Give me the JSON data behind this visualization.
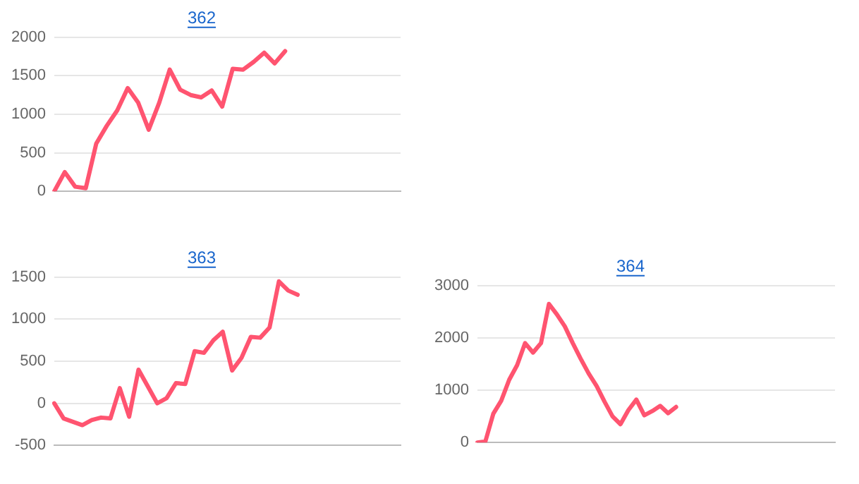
{
  "chart_data": [
    {
      "type": "line",
      "title": "362",
      "categories": [
        null,
        null,
        null,
        null,
        null,
        null,
        null,
        null,
        null,
        null,
        null,
        null,
        null,
        null,
        null,
        null,
        null,
        null,
        null,
        null,
        null,
        null,
        null,
        null,
        null,
        null,
        null,
        null,
        null,
        null,
        null,
        null,
        null,
        null
      ],
      "series": [
        {
          "color": "#ff5470",
          "values": [
            0,
            250,
            60,
            40,
            620,
            850,
            1050,
            1340,
            1150,
            800,
            1150,
            1580,
            1320,
            1250,
            1220,
            1310,
            1100,
            1590,
            1580,
            1680,
            1800,
            1660,
            1820,
            null,
            null,
            null,
            null,
            null,
            null,
            null,
            null,
            null,
            null,
            null
          ]
        }
      ],
      "ylim": [
        0,
        2000
      ],
      "yticks": [
        0,
        500,
        1000,
        1500,
        2000
      ],
      "grid": "y",
      "legend": false,
      "marker": "none"
    },
    {
      "type": "line",
      "title": "363",
      "categories": [
        null,
        null,
        null,
        null,
        null,
        null,
        null,
        null,
        null,
        null,
        null,
        null,
        null,
        null,
        null,
        null,
        null,
        null,
        null,
        null,
        null,
        null,
        null,
        null,
        null,
        null,
        null,
        null,
        null,
        null,
        null,
        null,
        null,
        null,
        null,
        null,
        null,
        null
      ],
      "series": [
        {
          "color": "#ff5470",
          "values": [
            0,
            -180,
            -220,
            -260,
            -200,
            -170,
            -180,
            180,
            -160,
            400,
            200,
            0,
            60,
            240,
            230,
            620,
            600,
            750,
            850,
            390,
            540,
            790,
            780,
            900,
            1450,
            1340,
            1290,
            null,
            null,
            null,
            null,
            null,
            null,
            null,
            null,
            null,
            null,
            null
          ]
        }
      ],
      "ylim": [
        -500,
        1500
      ],
      "yticks": [
        -500,
        0,
        500,
        1000,
        1500
      ],
      "grid": "y",
      "legend": false,
      "marker": "none"
    },
    {
      "type": "line",
      "title": "364",
      "categories": [
        null,
        null,
        null,
        null,
        null,
        null,
        null,
        null,
        null,
        null,
        null,
        null,
        null,
        null,
        null,
        null,
        null,
        null,
        null,
        null,
        null,
        null,
        null,
        null,
        null,
        null,
        null,
        null,
        null,
        null,
        null,
        null,
        null,
        null,
        null,
        null,
        null,
        null,
        null,
        null,
        null,
        null,
        null,
        null,
        null,
        null
      ],
      "series": [
        {
          "color": "#ff5470",
          "values": [
            0,
            20,
            550,
            800,
            1200,
            1480,
            1900,
            1720,
            1900,
            2650,
            2450,
            2220,
            1900,
            1600,
            1320,
            1080,
            780,
            500,
            350,
            620,
            820,
            520,
            600,
            700,
            560,
            680,
            null,
            null,
            null,
            null,
            null,
            null,
            null,
            null,
            null,
            null,
            null,
            null,
            null,
            null,
            null,
            null,
            null,
            null,
            null,
            null
          ]
        }
      ],
      "ylim": [
        0,
        3000
      ],
      "yticks": [
        0,
        1000,
        2000,
        3000
      ],
      "grid": "y",
      "legend": false,
      "marker": "none"
    }
  ]
}
